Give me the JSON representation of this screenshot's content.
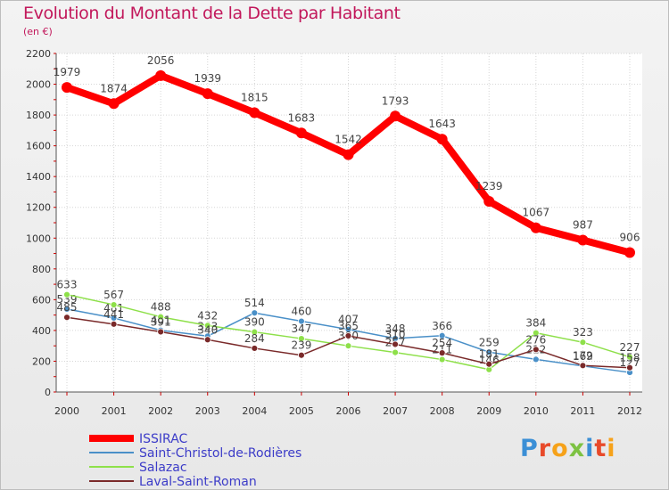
{
  "header": {
    "title": "Evolution du Montant de la Dette par Habitant",
    "subtitle": "(en €)"
  },
  "logo": {
    "text": "Proxiti",
    "colors": [
      "#3b8fd6",
      "#e84a2a",
      "#f6a21a",
      "#7dc242",
      "#3b8fd6",
      "#e84a2a",
      "#f6a21a"
    ]
  },
  "chart_data": {
    "type": "line",
    "title": "Evolution du Montant de la Dette par Habitant",
    "subtitle": "(en €)",
    "xlabel": "",
    "ylabel": "",
    "ylim": [
      0,
      2200
    ],
    "yticks": [
      0,
      200,
      400,
      600,
      800,
      1000,
      1200,
      1400,
      1600,
      1800,
      2000,
      2200
    ],
    "x": [
      "2000",
      "2001",
      "2002",
      "2003",
      "2004",
      "2005",
      "2006",
      "2007",
      "2008",
      "2009",
      "2010",
      "2011",
      "2012"
    ],
    "grid": true,
    "legend_position": "bottom-left",
    "series": [
      {
        "name": "ISSIRAC",
        "color": "#ff0000",
        "values": [
          1979,
          1874,
          2056,
          1939,
          1815,
          1683,
          1542,
          1793,
          1643,
          1239,
          1067,
          987,
          906
        ]
      },
      {
        "name": "Saint-Christol-de-Rodières",
        "color": "#4a90c8",
        "values": [
          539,
          481,
          401,
          363,
          514,
          460,
          407,
          348,
          366,
          259,
          212,
          169,
          127
        ]
      },
      {
        "name": "Salazac",
        "color": "#8ee04a",
        "values": [
          633,
          567,
          488,
          432,
          390,
          347,
          300,
          257,
          211,
          146,
          384,
          323,
          227
        ]
      },
      {
        "name": "Laval-Saint-Roman",
        "color": "#7a2a2a",
        "values": [
          485,
          441,
          391,
          340,
          284,
          239,
          365,
          310,
          254,
          181,
          276,
          172,
          158
        ]
      }
    ]
  }
}
